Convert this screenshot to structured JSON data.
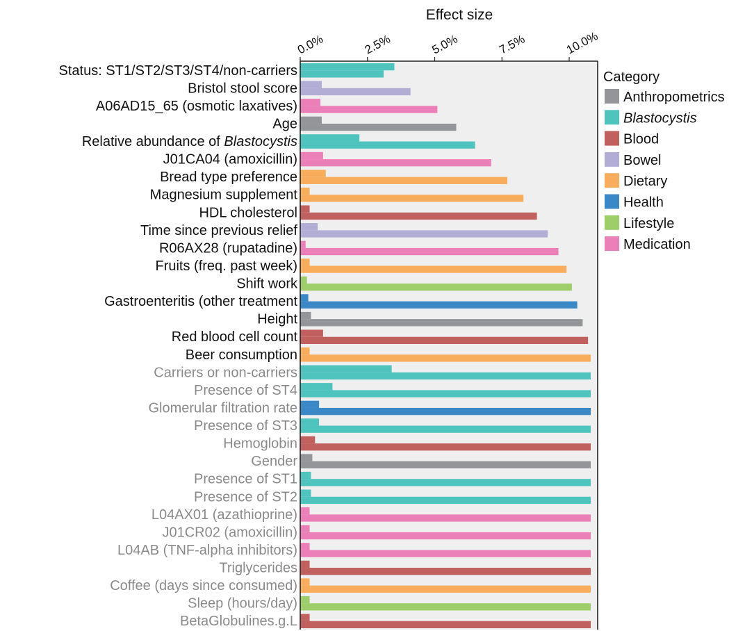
{
  "chart_data": {
    "type": "bar",
    "orientation": "horizontal",
    "xlabel": "Effect size",
    "x_ticks": [
      "0.0%",
      "2.5%",
      "5.0%",
      "7.5%",
      "10.0%"
    ],
    "xlim": [
      0,
      10.8
    ],
    "legend": {
      "title": "Category",
      "placement": "right",
      "entries": [
        {
          "name": "Anthropometrics",
          "color": "#939598",
          "italic": false
        },
        {
          "name": "Blastocystis",
          "color": "#4fc3bd",
          "italic": true
        },
        {
          "name": "Blood",
          "color": "#c0605f",
          "italic": false
        },
        {
          "name": "Bowel",
          "color": "#b1add5",
          "italic": false
        },
        {
          "name": "Dietary",
          "color": "#f8ad5c",
          "italic": false
        },
        {
          "name": "Health",
          "color": "#3b88c6",
          "italic": false
        },
        {
          "name": "Lifestyle",
          "color": "#9ece6a",
          "italic": false
        },
        {
          "name": "Medication",
          "color": "#eb7fb7",
          "italic": false
        }
      ]
    },
    "rows": [
      {
        "label": "Status: ST1/ST2/ST3/ST4/non-carriers",
        "label_italic_suffix": "",
        "category": "Blastocystis",
        "significant": true,
        "short": 3.5,
        "long": 3.1
      },
      {
        "label": "Bristol stool score",
        "label_italic_suffix": "",
        "category": "Bowel",
        "significant": true,
        "short": 0.8,
        "long": 4.1
      },
      {
        "label": "A06AD15_65 (osmotic laxatives)",
        "label_italic_suffix": "",
        "category": "Medication",
        "significant": true,
        "short": 0.75,
        "long": 5.1
      },
      {
        "label": "Age",
        "label_italic_suffix": "",
        "category": "Anthropometrics",
        "significant": true,
        "short": 0.8,
        "long": 5.8
      },
      {
        "label": "Relative abundance of ",
        "label_italic_suffix": "Blastocystis",
        "category": "Blastocystis",
        "significant": true,
        "short": 2.2,
        "long": 6.5
      },
      {
        "label": "J01CA04 (amoxicillin)",
        "label_italic_suffix": "",
        "category": "Medication",
        "significant": true,
        "short": 0.85,
        "long": 7.1
      },
      {
        "label": "Bread type preference",
        "label_italic_suffix": "",
        "category": "Dietary",
        "significant": true,
        "short": 0.95,
        "long": 7.7
      },
      {
        "label": "Magnesium supplement",
        "label_italic_suffix": "",
        "category": "Dietary",
        "significant": true,
        "short": 0.35,
        "long": 8.3
      },
      {
        "label": "HDL cholesterol",
        "label_italic_suffix": "",
        "category": "Blood",
        "significant": true,
        "short": 0.35,
        "long": 8.8
      },
      {
        "label": "Time since previous relief",
        "label_italic_suffix": "",
        "category": "Bowel",
        "significant": true,
        "short": 0.65,
        "long": 9.2
      },
      {
        "label": "R06AX28 (rupatadine)",
        "label_italic_suffix": "",
        "category": "Medication",
        "significant": true,
        "short": 0.2,
        "long": 9.6
      },
      {
        "label": "Fruits (freq. past week)",
        "label_italic_suffix": "",
        "category": "Dietary",
        "significant": true,
        "short": 0.35,
        "long": 9.9
      },
      {
        "label": "Shift work",
        "label_italic_suffix": "",
        "category": "Lifestyle",
        "significant": true,
        "short": 0.25,
        "long": 10.1
      },
      {
        "label": "Gastroenteritis (other treatment",
        "label_italic_suffix": "",
        "category": "Health",
        "significant": true,
        "short": 0.3,
        "long": 10.3
      },
      {
        "label": "Height",
        "label_italic_suffix": "",
        "category": "Anthropometrics",
        "significant": true,
        "short": 0.4,
        "long": 10.5
      },
      {
        "label": "Red blood cell count",
        "label_italic_suffix": "",
        "category": "Blood",
        "significant": true,
        "short": 0.85,
        "long": 10.7
      },
      {
        "label": "Beer consumption",
        "label_italic_suffix": "",
        "category": "Dietary",
        "significant": true,
        "short": 0.35,
        "long": 10.8
      },
      {
        "label": "Carriers or non-carriers",
        "label_italic_suffix": "",
        "category": "Blastocystis",
        "significant": false,
        "short": 3.4,
        "long": 10.8
      },
      {
        "label": "Presence of ST4",
        "label_italic_suffix": "",
        "category": "Blastocystis",
        "significant": false,
        "short": 1.2,
        "long": 10.8
      },
      {
        "label": "Glomerular filtration rate",
        "label_italic_suffix": "",
        "category": "Health",
        "significant": false,
        "short": 0.7,
        "long": 10.8
      },
      {
        "label": "Presence of ST3",
        "label_italic_suffix": "",
        "category": "Blastocystis",
        "significant": false,
        "short": 0.7,
        "long": 10.8
      },
      {
        "label": "Hemoglobin",
        "label_italic_suffix": "",
        "category": "Blood",
        "significant": false,
        "short": 0.55,
        "long": 10.8
      },
      {
        "label": "Gender",
        "label_italic_suffix": "",
        "category": "Anthropometrics",
        "significant": false,
        "short": 0.45,
        "long": 10.8
      },
      {
        "label": "Presence of ST1",
        "label_italic_suffix": "",
        "category": "Blastocystis",
        "significant": false,
        "short": 0.4,
        "long": 10.8
      },
      {
        "label": "Presence of ST2",
        "label_italic_suffix": "",
        "category": "Blastocystis",
        "significant": false,
        "short": 0.4,
        "long": 10.8
      },
      {
        "label": "L04AX01 (azathioprine)",
        "label_italic_suffix": "",
        "category": "Medication",
        "significant": false,
        "short": 0.35,
        "long": 10.8
      },
      {
        "label": "J01CR02 (amoxicillin)",
        "label_italic_suffix": "",
        "category": "Medication",
        "significant": false,
        "short": 0.35,
        "long": 10.8
      },
      {
        "label": "L04AB (TNF-alpha inhibitors)",
        "label_italic_suffix": "",
        "category": "Medication",
        "significant": false,
        "short": 0.35,
        "long": 10.8
      },
      {
        "label": "Triglycerides",
        "label_italic_suffix": "",
        "category": "Blood",
        "significant": false,
        "short": 0.35,
        "long": 10.8
      },
      {
        "label": "Coffee (days since consumed)",
        "label_italic_suffix": "",
        "category": "Dietary",
        "significant": false,
        "short": 0.35,
        "long": 10.8
      },
      {
        "label": "Sleep (hours/day)",
        "label_italic_suffix": "",
        "category": "Lifestyle",
        "significant": false,
        "short": 0.35,
        "long": 10.8
      },
      {
        "label": "BetaGlobulines.g.L",
        "label_italic_suffix": "",
        "category": "Blood",
        "significant": false,
        "short": 0.35,
        "long": 10.8
      }
    ],
    "label_color_significant": "#111111",
    "label_color_nonsignificant": "#8a8a8a",
    "panel_background": "#efefef"
  }
}
